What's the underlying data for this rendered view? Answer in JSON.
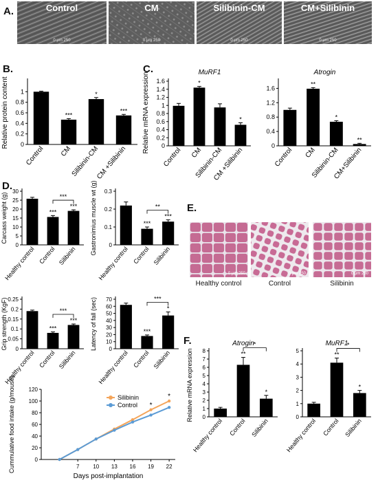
{
  "panels": {
    "A": "A.",
    "B": "B.",
    "C": "C.",
    "D": "D.",
    "E": "E.",
    "F": "F."
  },
  "micrographs": {
    "captions": [
      "Control",
      "CM",
      "Silibinin-CM",
      "CM+Silibinin"
    ],
    "scale_label": "0 μm 250"
  },
  "histology": {
    "captions": [
      "Healthy control",
      "Control",
      "Silibinin"
    ],
    "scale_label": "0 μm 250"
  },
  "chart_data": [
    {
      "id": "b",
      "type": "bar",
      "categories": [
        "Control",
        "CM",
        "Silibinin-CM",
        "CM +Silibinin"
      ],
      "values": [
        1.0,
        0.47,
        0.86,
        0.55
      ],
      "errors": [
        0.01,
        0.02,
        0.03,
        0.02
      ],
      "sig": [
        "",
        "***",
        "*",
        "***"
      ],
      "title": "",
      "xlabel": "",
      "ylabel": "Relative protein content",
      "ylim": [
        0,
        1.2
      ],
      "yticks": [
        0,
        0.2,
        0.4,
        0.6,
        0.8,
        1
      ]
    },
    {
      "id": "c1",
      "type": "bar",
      "categories": [
        "Control",
        "CM",
        "Silibinin-CM",
        "CM +Silibinin"
      ],
      "values": [
        0.99,
        1.44,
        0.95,
        0.52
      ],
      "errors": [
        0.06,
        0.03,
        0.09,
        0.05
      ],
      "sig": [
        "",
        "*",
        "",
        "*"
      ],
      "title": "MuRF1",
      "xlabel": "",
      "ylabel": "Relative mRNA expression",
      "ylim": [
        0,
        1.6
      ],
      "yticks": [
        0,
        0.2,
        0.4,
        0.6,
        0.8,
        1,
        1.2,
        1.4,
        1.6
      ]
    },
    {
      "id": "c2",
      "type": "bar",
      "categories": [
        "Control",
        "CM",
        "Silibinin-CM",
        "CM+Silibinin"
      ],
      "values": [
        1.0,
        1.59,
        0.67,
        0.05
      ],
      "errors": [
        0.05,
        0.03,
        0.03,
        0.02
      ],
      "sig": [
        "",
        "**",
        "*",
        "**"
      ],
      "title": "Atrogin",
      "xlabel": "",
      "ylabel": "",
      "ylim": [
        0,
        1.8
      ],
      "yticks": [
        0,
        0.4,
        0.8,
        1.2,
        1.6
      ]
    },
    {
      "id": "d1",
      "type": "bar",
      "categories": [
        "Healthy control",
        "Control",
        "Silibinin"
      ],
      "values": [
        25.8,
        15.6,
        19.0
      ],
      "errors": [
        0.8,
        0.8,
        0.6
      ],
      "sig": [
        "",
        "***",
        "***"
      ],
      "bracket": {
        "from": 1,
        "to": 2,
        "label": "***"
      },
      "title": "",
      "xlabel": "",
      "ylabel": "Carcass weight (g)",
      "ylim": [
        0,
        30
      ],
      "yticks": [
        0,
        5,
        10,
        15,
        20,
        25,
        30
      ]
    },
    {
      "id": "d2",
      "type": "bar",
      "categories": [
        "Healthy control",
        "Control",
        "Silibinin"
      ],
      "values": [
        0.22,
        0.09,
        0.13
      ],
      "errors": [
        0.02,
        0.01,
        0.01
      ],
      "sig": [
        "",
        "***",
        "***"
      ],
      "bracket": {
        "from": 1,
        "to": 2,
        "label": "**"
      },
      "title": "",
      "xlabel": "",
      "ylabel": "Gastronimius muscle wt (g)",
      "ylim": [
        0,
        0.3
      ],
      "yticks": [
        0,
        0.1,
        0.2,
        0.3
      ]
    },
    {
      "id": "d3",
      "type": "bar",
      "categories": [
        "Healthy control",
        "Control",
        "Silibinin"
      ],
      "values": [
        0.19,
        0.08,
        0.12
      ],
      "errors": [
        0.005,
        0.005,
        0.005
      ],
      "sig": [
        "",
        "***",
        "***"
      ],
      "bracket": {
        "from": 1,
        "to": 2,
        "label": "***"
      },
      "title": "",
      "xlabel": "",
      "ylabel": "Grip strength (KgF)",
      "ylim": [
        0,
        0.25
      ],
      "yticks": [
        0,
        0.05,
        0.1,
        0.15,
        0.2,
        0.25
      ]
    },
    {
      "id": "d4",
      "type": "bar",
      "categories": [
        "Healthy control",
        "Control",
        "Silibinin"
      ],
      "values": [
        62,
        18,
        47
      ],
      "errors": [
        2.5,
        1.5,
        5
      ],
      "sig": [
        "",
        "***",
        "*"
      ],
      "bracket": {
        "from": 1,
        "to": 2,
        "label": "***"
      },
      "title": "",
      "xlabel": "",
      "ylabel": "Latency of fall (sec)",
      "ylim": [
        0,
        70
      ],
      "yticks": [
        0,
        10,
        20,
        30,
        40,
        50,
        60,
        70
      ]
    },
    {
      "id": "dline",
      "type": "line",
      "x": [
        4,
        7,
        10,
        13,
        16,
        19,
        22
      ],
      "xticks": [
        7,
        10,
        13,
        16,
        19,
        22
      ],
      "series": [
        {
          "name": "Silibinin",
          "color": "#f4a55a",
          "values": [
            0,
            17,
            35,
            52,
            68,
            85,
            100
          ]
        },
        {
          "name": "Control",
          "color": "#5b9bd5",
          "values": [
            0,
            17,
            35,
            50,
            64,
            76,
            89
          ]
        }
      ],
      "sig": [
        {
          "x": 19,
          "label": "*"
        },
        {
          "x": 22,
          "label": "*"
        }
      ],
      "title": "",
      "xlabel": "Days post-implantation",
      "ylabel": "Cummulative food intake (g/mouse)",
      "ylim": [
        0,
        120
      ],
      "yticks": [
        0,
        20,
        40,
        60,
        80,
        100,
        120
      ],
      "xlim": [
        1,
        23
      ],
      "legend": "top-right",
      "grid": false
    },
    {
      "id": "f1",
      "type": "bar",
      "categories": [
        "Healthy control",
        "Control",
        "Silibinin"
      ],
      "values": [
        1.0,
        6.3,
        2.2
      ],
      "errors": [
        0.15,
        0.9,
        0.4
      ],
      "sig": [
        "",
        "**",
        "*"
      ],
      "bracket": {
        "from": 1,
        "to": 2,
        "label": "*"
      },
      "title": "Atrogin",
      "xlabel": "",
      "ylabel": "Relative mRNA expression",
      "ylim": [
        0,
        8
      ],
      "yticks": [
        0,
        1,
        2,
        3,
        4,
        5,
        6,
        7,
        8
      ]
    },
    {
      "id": "f2",
      "type": "bar",
      "categories": [
        "Healthy control",
        "Control",
        "Silibinin"
      ],
      "values": [
        1.0,
        4.1,
        1.8
      ],
      "errors": [
        0.1,
        0.35,
        0.2
      ],
      "sig": [
        "",
        "**",
        "*"
      ],
      "bracket": {
        "from": 1,
        "to": 2,
        "label": "*"
      },
      "title": "MuRF1",
      "xlabel": "",
      "ylabel": "",
      "ylim": [
        0,
        5
      ],
      "yticks": [
        0,
        1,
        2,
        3,
        4,
        5
      ]
    }
  ]
}
